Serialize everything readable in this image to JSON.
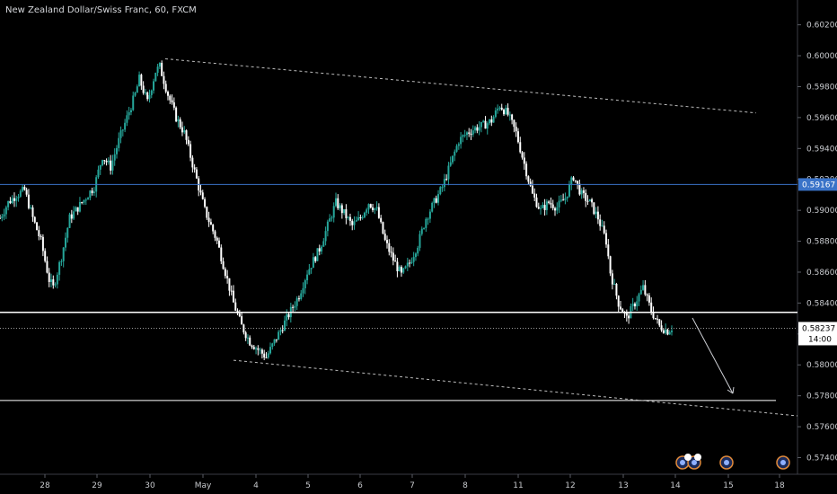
{
  "title": "New Zealand Dollar/Swiss Franc, 60, FXCM",
  "colors": {
    "background": "#000000",
    "up": "#26a69a",
    "down": "#ffffff",
    "hline_blue": "#3a73c8",
    "hline_white": "#ffffff",
    "trend": "#bdbdbd",
    "price_badge": "#ffffff",
    "blue_badge": "#3a73c8"
  },
  "price_badges": {
    "blue": "0.59167",
    "last": "0.58237",
    "time": "14:00"
  },
  "chart_data": {
    "type": "candlestick",
    "title": "New Zealand Dollar/Swiss Franc, 60, FXCM",
    "ylim": [
      0.5725,
      0.6032
    ],
    "y_ticks": [
      "0.57400",
      "0.57600",
      "0.57800",
      "0.58000",
      "0.58200",
      "0.58400",
      "0.58600",
      "0.58800",
      "0.59000",
      "0.59200",
      "0.59400",
      "0.59600",
      "0.59800",
      "0.60000",
      "0.60200"
    ],
    "x_ticks": [
      "28",
      "29",
      "30",
      "May",
      "4",
      "5",
      "6",
      "7",
      "8",
      "11",
      "12",
      "13",
      "14",
      "15",
      "18"
    ],
    "horizontal_lines": [
      {
        "name": "blue level",
        "price": 0.59167
      },
      {
        "name": "white resistance",
        "price": 0.5834
      },
      {
        "name": "white support",
        "price": 0.5777
      },
      {
        "name": "last price dotted",
        "price": 0.58237
      }
    ],
    "trendlines": [
      {
        "name": "upper channel",
        "from": [
          30,
          0.5997
        ],
        "to": [
          14.4,
          0.5963
        ]
      },
      {
        "name": "lower channel",
        "from": [
          4,
          0.5801
        ],
        "to": [
          15.7,
          0.5767
        ]
      }
    ],
    "path": [
      [
        0,
        0.5895
      ],
      [
        2,
        0.5905
      ],
      [
        4,
        0.591
      ],
      [
        6,
        0.5913
      ],
      [
        8,
        0.5895
      ],
      [
        10,
        0.588
      ],
      [
        12,
        0.5855
      ],
      [
        13,
        0.585
      ],
      [
        15,
        0.587
      ],
      [
        17,
        0.5895
      ],
      [
        20,
        0.5905
      ],
      [
        22,
        0.5912
      ],
      [
        23,
        0.5915
      ],
      [
        25,
        0.5935
      ],
      [
        27,
        0.5928
      ],
      [
        29,
        0.5945
      ],
      [
        31,
        0.596
      ],
      [
        33,
        0.5975
      ],
      [
        34,
        0.5985
      ],
      [
        36,
        0.597
      ],
      [
        38,
        0.599
      ],
      [
        39,
        0.5993
      ],
      [
        41,
        0.5975
      ],
      [
        43,
        0.596
      ],
      [
        45,
        0.595
      ],
      [
        47,
        0.593
      ],
      [
        50,
        0.59
      ],
      [
        53,
        0.588
      ],
      [
        55,
        0.586
      ],
      [
        57,
        0.584
      ],
      [
        59,
        0.5825
      ],
      [
        61,
        0.5815
      ],
      [
        63,
        0.581
      ],
      [
        65,
        0.5805
      ],
      [
        67,
        0.5815
      ],
      [
        69,
        0.5825
      ],
      [
        71,
        0.5835
      ],
      [
        73,
        0.5845
      ],
      [
        75,
        0.586
      ],
      [
        78,
        0.5875
      ],
      [
        80,
        0.589
      ],
      [
        82,
        0.5905
      ],
      [
        84,
        0.5898
      ],
      [
        86,
        0.589
      ],
      [
        88,
        0.5895
      ],
      [
        90,
        0.5905
      ],
      [
        92,
        0.59
      ],
      [
        94,
        0.588
      ],
      [
        96,
        0.5868
      ],
      [
        98,
        0.5858
      ],
      [
        100,
        0.5866
      ],
      [
        102,
        0.5878
      ],
      [
        104,
        0.5895
      ],
      [
        106,
        0.5905
      ],
      [
        108,
        0.5915
      ],
      [
        110,
        0.593
      ],
      [
        112,
        0.5945
      ],
      [
        114,
        0.595
      ],
      [
        116,
        0.5953
      ],
      [
        118,
        0.5955
      ],
      [
        120,
        0.5958
      ],
      [
        122,
        0.5968
      ],
      [
        124,
        0.5962
      ],
      [
        126,
        0.595
      ],
      [
        128,
        0.593
      ],
      [
        130,
        0.591
      ],
      [
        132,
        0.59
      ],
      [
        134,
        0.5905
      ],
      [
        136,
        0.5902
      ],
      [
        138,
        0.5908
      ],
      [
        140,
        0.5922
      ],
      [
        142,
        0.591
      ],
      [
        144,
        0.5905
      ],
      [
        146,
        0.5895
      ],
      [
        148,
        0.588
      ],
      [
        149,
        0.586
      ],
      [
        151,
        0.584
      ],
      [
        153,
        0.583
      ],
      [
        155,
        0.584
      ],
      [
        157,
        0.585
      ],
      [
        159,
        0.5835
      ],
      [
        161,
        0.5825
      ],
      [
        163,
        0.5822
      ],
      [
        164,
        0.5824
      ]
    ]
  }
}
